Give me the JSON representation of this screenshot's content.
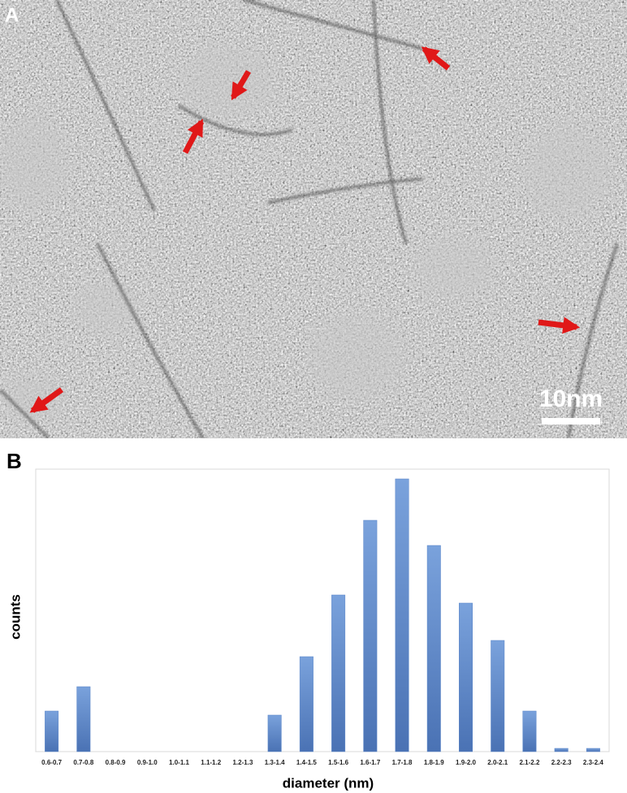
{
  "image": {
    "label": "A",
    "scale_bar": "10nm"
  },
  "chart_data": {
    "type": "bar",
    "panel_label": "B",
    "categories": [
      "0.6-0.7",
      "0.7-0.8",
      "0.8-0.9",
      "0.9-1.0",
      "1.0-1.1",
      "1.1-1.2",
      "1.2-1.3",
      "1.3-1.4",
      "1.4-1.5",
      "1.5-1.6",
      "1.6-1.7",
      "1.7-1.8",
      "1.8-1.9",
      "1.9-2.0",
      "2.0-2.1",
      "2.1-2.2",
      "2.2-2.3",
      "2.3-2.4"
    ],
    "values": [
      50,
      80,
      0,
      0,
      0,
      0,
      0,
      45,
      117,
      193,
      285,
      336,
      254,
      183,
      137,
      50,
      4,
      4
    ],
    "color": "#5b86c8",
    "ylim": [
      0,
      348
    ],
    "xlabel": "diameter (nm)",
    "ylabel": "counts"
  }
}
